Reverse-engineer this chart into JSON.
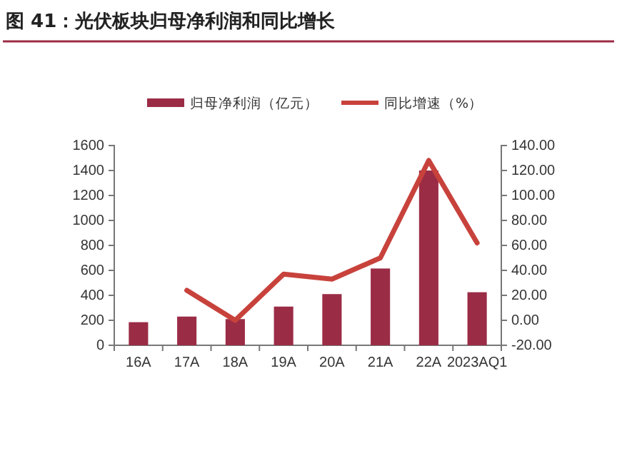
{
  "chart_data": {
    "type": "bar",
    "title": "图 41：光伏板块归母净利润和同比增长",
    "categories": [
      "16A",
      "17A",
      "18A",
      "19A",
      "20A",
      "21A",
      "22A",
      "2023AQ1"
    ],
    "series": [
      {
        "name": "归母净利润（亿元）",
        "color": "#9b2c45",
        "values": [
          185,
          230,
          210,
          310,
          410,
          615,
          1400,
          425
        ]
      },
      {
        "name": "同比增速（%）",
        "type": "line",
        "axis": "y2",
        "color": "#c8423c",
        "values": [
          null,
          24,
          0,
          37,
          33,
          50,
          128,
          62
        ]
      }
    ],
    "ylim": [
      0,
      1600
    ],
    "yticks": [
      0,
      200,
      400,
      600,
      800,
      1000,
      1200,
      1400,
      1600
    ],
    "y2lim": [
      -20,
      140
    ],
    "y2ticks": [
      {
        "value": -20,
        "label": "-20.00"
      },
      {
        "value": 0,
        "label": "0.00"
      },
      {
        "value": 20,
        "label": "20.00"
      },
      {
        "value": 40,
        "label": "40.00"
      },
      {
        "value": 60,
        "label": "60.00"
      },
      {
        "value": 80,
        "label": "80.00"
      },
      {
        "value": 100,
        "label": "100.00"
      },
      {
        "value": 120,
        "label": "120.00"
      },
      {
        "value": 140,
        "label": "140.00"
      }
    ],
    "legend": "top",
    "grid": false
  }
}
